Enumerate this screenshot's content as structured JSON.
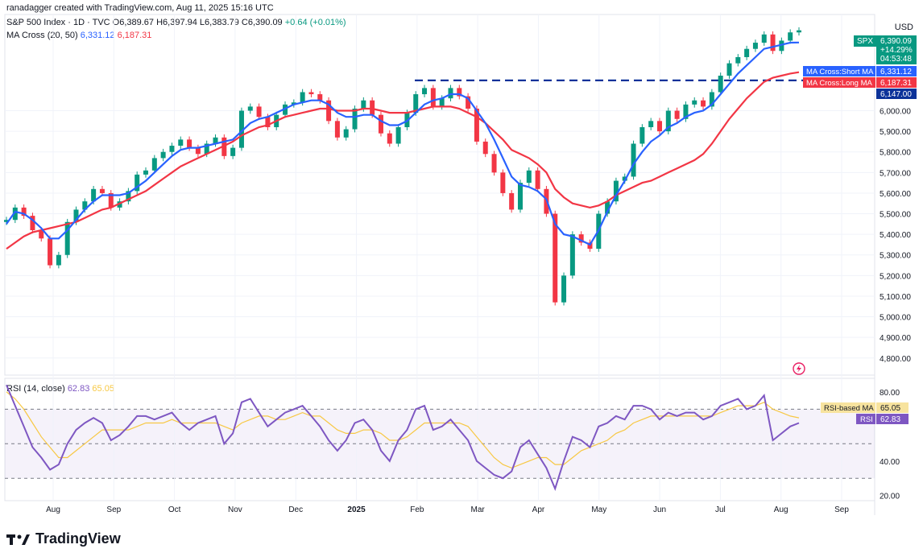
{
  "header": {
    "author_line": "ranadagger created with TradingView.com, Aug 11, 2025 15:16 UTC",
    "symbol": "S&P 500 Index · 1D · TVC",
    "ohlc": "O6,389.67  H6,397.94  L6,383.79  C6,390.09",
    "change": "+0.64 (+0.01%)",
    "ma_title": "MA Cross (20, 50)",
    "ma_short": "6,331.12",
    "ma_long": "6,187.31"
  },
  "currency": "USD",
  "price_tags": {
    "spx_label": "SPX",
    "spx_price": "6,390.09",
    "spx_pct": "+14.29%",
    "spx_time": "04:53:48",
    "short_label": "MA Cross:Short MA",
    "short_value": "6,331.12",
    "long_label": "MA Cross:Long MA",
    "long_value": "6,187.31",
    "level_value": "6,147.00"
  },
  "rsi": {
    "title": "RSI (14, close)",
    "value": "62.83",
    "ma_value": "65.05",
    "ma_label": "RSI-based MA",
    "label": "RSI"
  },
  "logo_text": "TradingView",
  "colors": {
    "short_ma": "#2962ff",
    "long_ma": "#f23645",
    "up": "#089981",
    "down": "#f23645",
    "rsi": "#7e57c2",
    "rsi_ma": "#f7c844"
  },
  "chart_data": {
    "type": "line",
    "price_axis_ticks": [
      4800,
      4900,
      5000,
      5100,
      5200,
      5300,
      5400,
      5500,
      5600,
      5700,
      5800,
      5900,
      6000
    ],
    "rsi_axis_ticks": [
      20,
      40,
      80
    ],
    "rsi_bands": [
      30,
      50,
      70
    ],
    "x_ticks": [
      "Aug",
      "Sep",
      "Oct",
      "Nov",
      "Dec",
      "2025",
      "Feb",
      "Mar",
      "Apr",
      "May",
      "Jun",
      "Jul",
      "Aug",
      "Sep"
    ],
    "horizontal_level": 6147,
    "price_range": [
      4760,
      6420
    ],
    "rsi_range": [
      18,
      86
    ],
    "series_price": {
      "name": "SPX",
      "values": [
        5470,
        5530,
        5490,
        5420,
        5380,
        5250,
        5300,
        5460,
        5520,
        5560,
        5620,
        5600,
        5530,
        5560,
        5610,
        5690,
        5710,
        5770,
        5800,
        5830,
        5860,
        5820,
        5790,
        5840,
        5870,
        5780,
        5820,
        6000,
        6020,
        5970,
        5920,
        5980,
        6030,
        6040,
        6090,
        6080,
        6050,
        5950,
        5870,
        5910,
        6010,
        6050,
        5980,
        5890,
        5840,
        5920,
        5990,
        6080,
        6110,
        6020,
        6060,
        6110,
        6070,
        6010,
        5850,
        5790,
        5700,
        5600,
        5520,
        5650,
        5710,
        5620,
        5500,
        5070,
        5200,
        5400,
        5360,
        5330,
        5500,
        5560,
        5660,
        5680,
        5840,
        5920,
        5950,
        5900,
        6000,
        5960,
        6030,
        6050,
        6020,
        6090,
        6170,
        6230,
        6260,
        6300,
        6330,
        6370,
        6290,
        6340,
        6380,
        6390
      ]
    },
    "series_short_ma": {
      "name": "Short MA",
      "values": [
        5450,
        5510,
        5500,
        5470,
        5430,
        5380,
        5380,
        5420,
        5470,
        5520,
        5560,
        5590,
        5590,
        5590,
        5600,
        5630,
        5660,
        5700,
        5740,
        5780,
        5810,
        5820,
        5820,
        5830,
        5840,
        5850,
        5860,
        5900,
        5940,
        5960,
        5970,
        5990,
        6010,
        6030,
        6040,
        6050,
        6050,
        6030,
        5990,
        5970,
        5970,
        5980,
        5980,
        5950,
        5930,
        5930,
        5950,
        5990,
        6030,
        6050,
        6060,
        6080,
        6080,
        6060,
        6000,
        5940,
        5860,
        5770,
        5680,
        5640,
        5630,
        5610,
        5570,
        5450,
        5400,
        5390,
        5370,
        5350,
        5420,
        5510,
        5590,
        5660,
        5740,
        5800,
        5850,
        5880,
        5920,
        5940,
        5970,
        5990,
        6000,
        6030,
        6080,
        6130,
        6180,
        6220,
        6260,
        6300,
        6310,
        6320,
        6330,
        6331
      ]
    },
    "series_long_ma": {
      "name": "Long MA",
      "values": [
        5330,
        5360,
        5390,
        5410,
        5420,
        5430,
        5440,
        5450,
        5460,
        5480,
        5500,
        5520,
        5530,
        5550,
        5570,
        5590,
        5610,
        5640,
        5670,
        5700,
        5730,
        5750,
        5770,
        5790,
        5810,
        5830,
        5850,
        5880,
        5900,
        5920,
        5930,
        5950,
        5970,
        5980,
        5990,
        6000,
        6010,
        6010,
        6000,
        6000,
        6000,
        6010,
        6010,
        6000,
        5990,
        5990,
        5990,
        6000,
        6010,
        6020,
        6020,
        6020,
        6010,
        5990,
        5970,
        5940,
        5900,
        5860,
        5810,
        5790,
        5770,
        5740,
        5700,
        5620,
        5580,
        5550,
        5540,
        5530,
        5540,
        5560,
        5590,
        5610,
        5630,
        5650,
        5660,
        5680,
        5700,
        5720,
        5740,
        5760,
        5790,
        5840,
        5900,
        5960,
        6010,
        6060,
        6100,
        6140,
        6160,
        6170,
        6180,
        6187
      ]
    },
    "series_rsi": {
      "name": "RSI",
      "values": [
        84,
        72,
        60,
        48,
        42,
        35,
        38,
        50,
        58,
        62,
        65,
        62,
        52,
        55,
        60,
        66,
        66,
        64,
        66,
        68,
        62,
        58,
        62,
        64,
        66,
        50,
        56,
        74,
        76,
        68,
        60,
        64,
        68,
        70,
        72,
        66,
        60,
        52,
        46,
        52,
        62,
        64,
        58,
        46,
        40,
        52,
        58,
        70,
        72,
        58,
        60,
        64,
        58,
        52,
        40,
        36,
        32,
        30,
        34,
        48,
        52,
        44,
        36,
        24,
        40,
        54,
        52,
        48,
        60,
        62,
        66,
        64,
        72,
        72,
        70,
        64,
        68,
        66,
        68,
        68,
        64,
        66,
        72,
        74,
        76,
        70,
        72,
        78,
        52,
        56,
        60,
        62
      ]
    },
    "series_rsi_ma": {
      "name": "RSI-based MA",
      "values": [
        80,
        76,
        70,
        62,
        54,
        48,
        42,
        42,
        46,
        50,
        54,
        58,
        58,
        58,
        58,
        60,
        62,
        62,
        62,
        64,
        62,
        62,
        62,
        62,
        62,
        60,
        58,
        62,
        64,
        66,
        66,
        64,
        64,
        66,
        68,
        66,
        66,
        62,
        58,
        56,
        56,
        58,
        58,
        56,
        52,
        52,
        54,
        58,
        62,
        62,
        62,
        62,
        62,
        60,
        54,
        48,
        42,
        38,
        36,
        38,
        40,
        42,
        42,
        38,
        38,
        42,
        46,
        48,
        50,
        52,
        56,
        58,
        62,
        64,
        66,
        66,
        66,
        66,
        66,
        66,
        66,
        66,
        68,
        70,
        72,
        72,
        72,
        74,
        70,
        68,
        66,
        65
      ]
    }
  }
}
